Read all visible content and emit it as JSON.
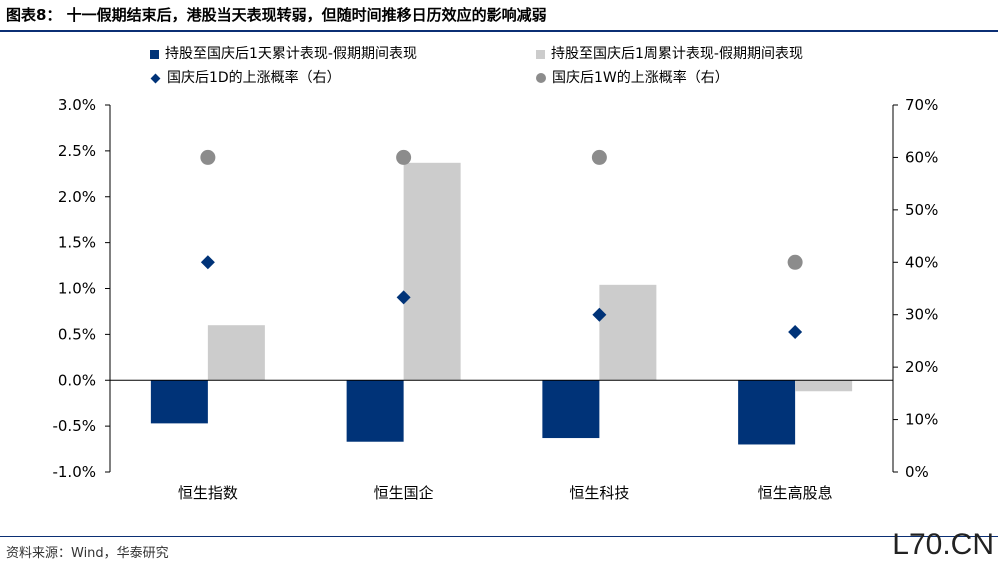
{
  "title": "图表8： 十一假期结束后，港股当天表现转弱，但随时间推移日历效应的影响减弱",
  "source": "资料来源：Wind，华泰研究",
  "watermark": "L70.CN",
  "colors": {
    "navy": "#003378",
    "lightgray": "#cccccc",
    "diamond": "#003378",
    "dot": "#8c8c8c",
    "rule": "#0b2f74"
  },
  "legend": [
    {
      "label": "持股至国庆后1天累计表现-假期期间表现",
      "marker": "square",
      "color": "#003378"
    },
    {
      "label": "持股至国庆后1周累计表现-假期期间表现",
      "marker": "square",
      "color": "#cccccc"
    },
    {
      "label": "国庆后1D的上涨概率（右）",
      "marker": "diamond",
      "color": "#003378"
    },
    {
      "label": "国庆后1W的上涨概率（右）",
      "marker": "circle",
      "color": "#8c8c8c"
    }
  ],
  "chart_data": {
    "type": "bar",
    "categories": [
      "恒生指数",
      "恒生国企",
      "恒生科技",
      "恒生高股息"
    ],
    "series": [
      {
        "name": "持股至国庆后1天累计表现-假期期间表现",
        "type": "bar",
        "axis": "left",
        "values": [
          -0.47,
          -0.67,
          -0.63,
          -0.7
        ]
      },
      {
        "name": "持股至国庆后1周累计表现-假期期间表现",
        "type": "bar",
        "axis": "left",
        "values": [
          0.6,
          2.37,
          1.04,
          -0.12
        ]
      },
      {
        "name": "国庆后1D的上涨概率（右）",
        "type": "scatter",
        "axis": "right",
        "values": [
          40,
          33.3,
          30,
          26.7
        ]
      },
      {
        "name": "国庆后1W的上涨概率（右）",
        "type": "scatter",
        "axis": "right",
        "values": [
          60,
          60,
          60,
          40
        ]
      }
    ],
    "y_left": {
      "min": -1.0,
      "max": 3.0,
      "step": 0.5,
      "tick_labels": [
        "-1.0%",
        "-0.5%",
        "0.0%",
        "0.5%",
        "1.0%",
        "1.5%",
        "2.0%",
        "2.5%",
        "3.0%"
      ]
    },
    "y_right": {
      "min": 0,
      "max": 70,
      "step": 10,
      "tick_labels": [
        "0%",
        "10%",
        "20%",
        "30%",
        "40%",
        "50%",
        "60%",
        "70%"
      ]
    },
    "legend_position": "top"
  }
}
